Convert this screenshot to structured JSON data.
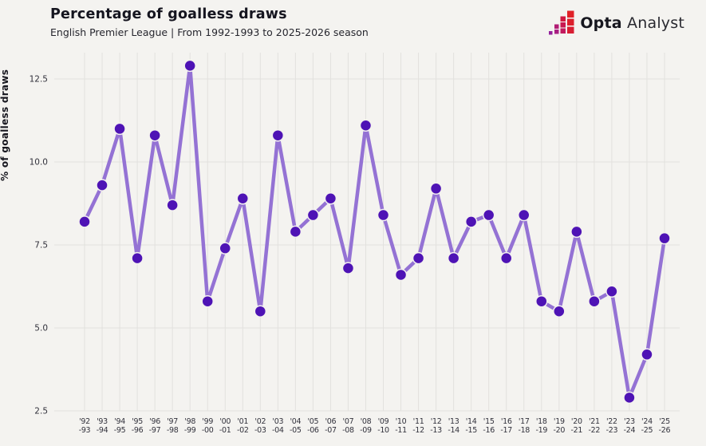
{
  "header": {
    "title": "Percentage of goalless draws",
    "subtitle": "English Premier League | From 1992-1993 to 2025-2026 season"
  },
  "logo": {
    "brand_bold": "Opta",
    "brand_light": "Analyst"
  },
  "chart_data": {
    "type": "line",
    "title": "Percentage of goalless draws",
    "subtitle": "English Premier League | From 1992-1993 to 2025-2026 season",
    "xlabel": "",
    "ylabel": "% of goalless draws",
    "categories": [
      "'92-93",
      "'93-94",
      "'94-95",
      "'95-96",
      "'96-97",
      "'97-98",
      "'98-99",
      "'99-00",
      "'00-01",
      "'01-02",
      "'02-03",
      "'03-04",
      "'04-05",
      "'05-06",
      "'06-07",
      "'07-08",
      "'08-09",
      "'09-10",
      "'10-11",
      "'11-12",
      "'12-13",
      "'13-14",
      "'14-15",
      "'15-16",
      "'16-17",
      "'17-18",
      "'18-19",
      "'19-20",
      "'20-21",
      "'21-22",
      "'22-23",
      "'23-24",
      "'24-25",
      "'25-26"
    ],
    "values": [
      8.2,
      9.3,
      11.0,
      7.1,
      10.8,
      8.7,
      12.9,
      5.8,
      7.4,
      8.9,
      5.5,
      10.8,
      7.9,
      8.4,
      8.9,
      6.8,
      11.1,
      8.4,
      6.6,
      7.1,
      9.2,
      7.1,
      8.2,
      8.4,
      7.1,
      8.4,
      5.8,
      5.5,
      7.9,
      5.8,
      6.1,
      2.9,
      4.2,
      7.7
    ],
    "yticks": [
      2.5,
      5.0,
      7.5,
      10.0,
      12.5
    ],
    "ytick_labels": [
      "2.5",
      "5.0",
      "7.5",
      "10.0",
      "12.5"
    ],
    "ylim": [
      2.5,
      13.5
    ],
    "grid": true,
    "legend": false,
    "colors": {
      "background": "#f4f3f0",
      "grid": "#e2e1de",
      "line": "#8e6ad2",
      "point": "#4e13b5",
      "point_ring": "#f3f1ef",
      "text_dark": "#15151f",
      "tick_text": "#32323c"
    }
  }
}
